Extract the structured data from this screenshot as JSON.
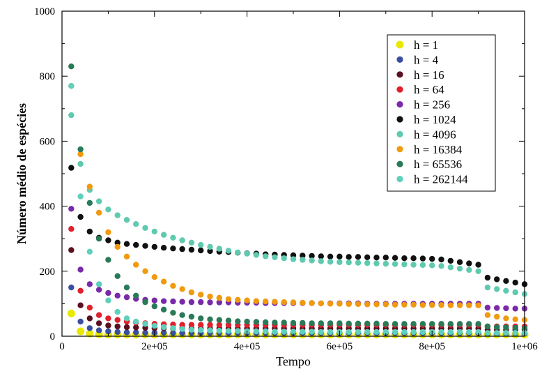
{
  "chart_data": {
    "type": "scatter",
    "xlabel": "Tempo",
    "ylabel": "Número médio de espécies",
    "xlim": [
      0,
      1000000
    ],
    "ylim": [
      0,
      1000
    ],
    "xticks": [
      0,
      200000,
      400000,
      600000,
      800000,
      1000000
    ],
    "xtick_labels": [
      "0",
      "2e+05",
      "4e+05",
      "6e+05",
      "8e+05",
      "1e+06"
    ],
    "yticks": [
      0,
      200,
      400,
      600,
      800,
      1000
    ],
    "ytick_labels": [
      "0",
      "200",
      "400",
      "600",
      "800",
      "1000"
    ],
    "legend_position": "top-right",
    "x": [
      20000,
      40000,
      60000,
      80000,
      100000,
      120000,
      140000,
      160000,
      180000,
      200000,
      220000,
      240000,
      260000,
      280000,
      300000,
      320000,
      340000,
      360000,
      380000,
      400000,
      420000,
      440000,
      460000,
      480000,
      500000,
      520000,
      540000,
      560000,
      580000,
      600000,
      620000,
      640000,
      660000,
      680000,
      700000,
      720000,
      740000,
      760000,
      780000,
      800000,
      820000,
      840000,
      860000,
      880000,
      900000,
      920000,
      940000,
      960000,
      980000,
      1000000
    ],
    "series": [
      {
        "name": "h = 1",
        "color": "#e8e800",
        "values": [
          70,
          15,
          8,
          6,
          5,
          5,
          5,
          5,
          5,
          5,
          5,
          5,
          5,
          5,
          5,
          5,
          5,
          5,
          5,
          5,
          5,
          5,
          5,
          5,
          5,
          5,
          5,
          5,
          5,
          5,
          5,
          5,
          5,
          5,
          5,
          5,
          5,
          5,
          5,
          5,
          5,
          5,
          5,
          5,
          5,
          5,
          5,
          5,
          5,
          5
        ]
      },
      {
        "name": "h = 4",
        "color": "#3a4fa0",
        "values": [
          150,
          45,
          25,
          18,
          15,
          13,
          12,
          12,
          11,
          11,
          11,
          10,
          10,
          10,
          10,
          10,
          10,
          10,
          10,
          10,
          10,
          10,
          10,
          10,
          10,
          10,
          10,
          10,
          10,
          10,
          10,
          10,
          10,
          10,
          10,
          10,
          10,
          10,
          10,
          10,
          10,
          10,
          10,
          10,
          10,
          8,
          8,
          8,
          8,
          8
        ]
      },
      {
        "name": "h = 16",
        "color": "#5a1020",
        "values": [
          265,
          95,
          55,
          40,
          33,
          30,
          28,
          27,
          26,
          25,
          25,
          24,
          24,
          24,
          24,
          24,
          24,
          24,
          24,
          24,
          24,
          24,
          24,
          24,
          24,
          24,
          24,
          24,
          24,
          24,
          24,
          24,
          24,
          24,
          24,
          24,
          24,
          24,
          24,
          24,
          24,
          24,
          24,
          24,
          24,
          20,
          20,
          20,
          20,
          20
        ]
      },
      {
        "name": "h = 64",
        "color": "#e0202c",
        "values": [
          330,
          140,
          88,
          65,
          55,
          50,
          45,
          42,
          40,
          38,
          37,
          36,
          35,
          35,
          35,
          35,
          35,
          35,
          35,
          35,
          35,
          35,
          35,
          35,
          35,
          35,
          35,
          35,
          35,
          35,
          35,
          35,
          35,
          35,
          35,
          35,
          35,
          35,
          35,
          35,
          35,
          35,
          35,
          35,
          35,
          30,
          30,
          30,
          30,
          30
        ]
      },
      {
        "name": "h = 256",
        "color": "#7a2aa8",
        "values": [
          392,
          205,
          160,
          143,
          133,
          125,
          120,
          115,
          112,
          110,
          108,
          107,
          106,
          105,
          105,
          104,
          104,
          104,
          103,
          103,
          103,
          102,
          102,
          102,
          102,
          102,
          102,
          101,
          101,
          101,
          101,
          101,
          100,
          100,
          100,
          100,
          100,
          100,
          100,
          100,
          100,
          100,
          100,
          100,
          100,
          88,
          87,
          86,
          85,
          85
        ]
      },
      {
        "name": "h = 1024",
        "color": "#111111",
        "values": [
          518,
          367,
          322,
          303,
          295,
          288,
          284,
          281,
          278,
          275,
          272,
          270,
          268,
          266,
          264,
          262,
          260,
          259,
          257,
          255,
          254,
          252,
          251,
          250,
          249,
          248,
          247,
          246,
          245,
          245,
          244,
          244,
          243,
          242,
          242,
          241,
          240,
          240,
          239,
          238,
          236,
          232,
          228,
          224,
          220,
          180,
          175,
          170,
          165,
          160
        ]
      },
      {
        "name": "h = 4096",
        "color": "#5fcab0",
        "values": [
          680,
          530,
          450,
          415,
          390,
          372,
          358,
          345,
          333,
          322,
          312,
          303,
          295,
          288,
          281,
          275,
          269,
          263,
          258,
          254,
          250,
          246,
          243,
          240,
          237,
          235,
          233,
          231,
          229,
          228,
          227,
          226,
          225,
          224,
          223,
          222,
          221,
          220,
          219,
          218,
          216,
          212,
          208,
          204,
          200,
          150,
          145,
          140,
          135,
          130
        ]
      },
      {
        "name": "h = 16384",
        "color": "#f09a10",
        "values": [
          770,
          560,
          460,
          380,
          320,
          275,
          245,
          220,
          200,
          182,
          168,
          155,
          145,
          135,
          128,
          122,
          118,
          114,
          112,
          110,
          108,
          107,
          106,
          105,
          104,
          103,
          102,
          101,
          100,
          100,
          99,
          99,
          98,
          98,
          98,
          97,
          97,
          97,
          96,
          96,
          96,
          95,
          95,
          95,
          95,
          65,
          60,
          55,
          52,
          50
        ]
      },
      {
        "name": "h = 65536",
        "color": "#2a7a58",
        "values": [
          830,
          575,
          410,
          300,
          235,
          185,
          150,
          125,
          105,
          92,
          82,
          72,
          65,
          60,
          55,
          52,
          50,
          48,
          46,
          45,
          44,
          43,
          42,
          42,
          41,
          41,
          40,
          40,
          40,
          40,
          39,
          39,
          39,
          39,
          38,
          38,
          38,
          38,
          38,
          38,
          38,
          38,
          38,
          38,
          38,
          30,
          28,
          27,
          26,
          25
        ]
      },
      {
        "name": "h = 262144",
        "color": "#5fd0bc",
        "values": [
          770,
          430,
          260,
          160,
          110,
          75,
          55,
          45,
          38,
          32,
          28,
          25,
          22,
          20,
          19,
          18,
          17,
          16,
          16,
          15,
          15,
          15,
          14,
          14,
          14,
          14,
          14,
          13,
          13,
          13,
          13,
          13,
          13,
          13,
          13,
          13,
          13,
          13,
          13,
          13,
          13,
          13,
          13,
          13,
          13,
          10,
          10,
          10,
          10,
          10
        ]
      }
    ]
  }
}
